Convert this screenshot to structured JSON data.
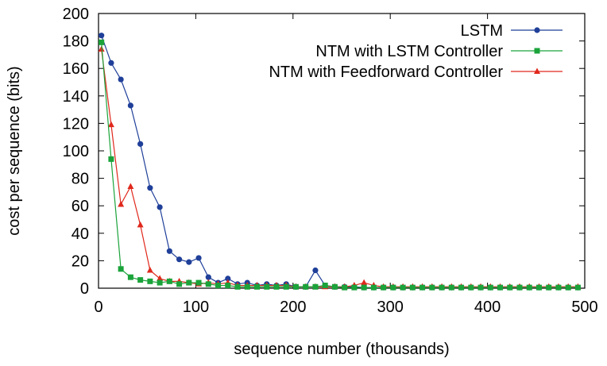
{
  "chart_data": {
    "type": "line",
    "title": "",
    "xlabel": "sequence number (thousands)",
    "ylabel": "cost per sequence (bits)",
    "xlim": [
      0,
      500
    ],
    "ylim": [
      0,
      200
    ],
    "xticks": [
      0,
      100,
      200,
      300,
      400,
      500
    ],
    "yticks": [
      0,
      20,
      40,
      60,
      80,
      100,
      120,
      140,
      160,
      180,
      200
    ],
    "grid": false,
    "legend": "top-right",
    "x": [
      3,
      13,
      23,
      33,
      43,
      53,
      63,
      73,
      83,
      93,
      103,
      113,
      123,
      133,
      143,
      153,
      163,
      173,
      183,
      193,
      203,
      213,
      223,
      233,
      243,
      253,
      263,
      273,
      283,
      293,
      303,
      313,
      323,
      333,
      343,
      353,
      363,
      373,
      383,
      393,
      403,
      413,
      423,
      433,
      443,
      453,
      463,
      473,
      483,
      493
    ],
    "series": [
      {
        "name": "LSTM",
        "color": "#1f3f99",
        "marker": "circle",
        "values": [
          184,
          164,
          152,
          133,
          105,
          73,
          59,
          27,
          21,
          19,
          22,
          8,
          4,
          7,
          3,
          4,
          2,
          3,
          2,
          3,
          1,
          1,
          13,
          2,
          1,
          1,
          1,
          0.5,
          0.5,
          0.5,
          0.5,
          0.5,
          0.5,
          0.5,
          0.5,
          0.5,
          0.5,
          0.5,
          0.5,
          0.5,
          0.5,
          0.5,
          0.5,
          0.5,
          0.5,
          0.5,
          0.5,
          0.5,
          0.5,
          0.5
        ]
      },
      {
        "name": "NTM with LSTM Controller",
        "color": "#1aa33a",
        "marker": "square",
        "values": [
          179,
          94,
          14,
          8,
          6,
          5,
          4,
          5,
          3,
          4,
          4,
          3,
          2,
          2,
          1,
          1,
          1,
          1,
          1,
          1,
          1,
          1,
          1,
          2,
          1,
          0.5,
          0.5,
          0.5,
          0.5,
          0.5,
          0.5,
          0.5,
          0.5,
          0.5,
          0.5,
          0.5,
          0.5,
          0.5,
          0.5,
          0.5,
          0.5,
          0.5,
          0.5,
          0.5,
          0.5,
          0.5,
          0.5,
          0.5,
          0.5,
          0.5
        ]
      },
      {
        "name": "NTM with Feedforward Controller",
        "color": "#e0281c",
        "marker": "triangle",
        "values": [
          174,
          119,
          61,
          74,
          46,
          13,
          7,
          5,
          5,
          4,
          3,
          4,
          3,
          4,
          2,
          2,
          2,
          2,
          2,
          2,
          1,
          1,
          1,
          1,
          1,
          1,
          2,
          4,
          2,
          1,
          1,
          1,
          1,
          1,
          1,
          1,
          1,
          1,
          1,
          1,
          1,
          1,
          1,
          1,
          1,
          1,
          1,
          1,
          1,
          1
        ]
      }
    ]
  }
}
